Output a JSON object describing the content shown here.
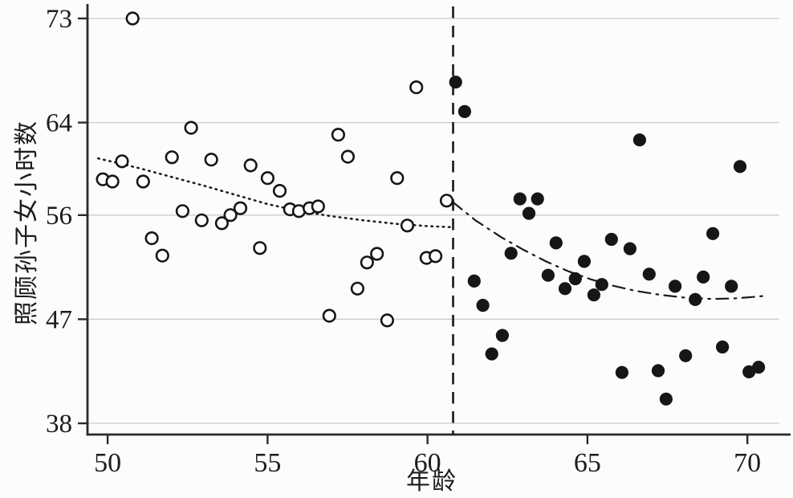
{
  "chart_data": {
    "type": "scatter",
    "title": "",
    "xlabel": "年龄",
    "ylabel": "照顾孙子女小时数",
    "x_ticks": [
      50,
      55,
      60,
      65,
      70
    ],
    "y_ticks": [
      73,
      64,
      56,
      47,
      38
    ],
    "xlim": [
      49.37,
      71.1
    ],
    "ylim": [
      37.03,
      74.04
    ],
    "grid": "horizontal-only",
    "legend": "none",
    "cutoff_line_x": 60.8,
    "colors": {
      "points": "#161616",
      "axis": "#2a2a2a",
      "grid": "#cccccc",
      "background": "#fcfcfb"
    },
    "series": [
      {
        "name": "pre-cutoff (open circles)",
        "marker": "open-circle",
        "points": [
          [
            50.78,
            73.0
          ],
          [
            49.85,
            59.1
          ],
          [
            50.15,
            58.9
          ],
          [
            50.45,
            60.65
          ],
          [
            51.11,
            58.9
          ],
          [
            51.38,
            54.0
          ],
          [
            51.71,
            52.5
          ],
          [
            52.01,
            61.0
          ],
          [
            52.34,
            56.35
          ],
          [
            52.61,
            63.55
          ],
          [
            52.94,
            55.55
          ],
          [
            53.24,
            60.8
          ],
          [
            53.57,
            55.3
          ],
          [
            53.84,
            56.0
          ],
          [
            54.15,
            56.6
          ],
          [
            54.47,
            60.3
          ],
          [
            54.76,
            53.15
          ],
          [
            55.0,
            59.2
          ],
          [
            55.38,
            58.1
          ],
          [
            55.7,
            56.5
          ],
          [
            55.98,
            56.35
          ],
          [
            56.31,
            56.6
          ],
          [
            56.58,
            56.75
          ],
          [
            56.93,
            47.3
          ],
          [
            57.21,
            62.95
          ],
          [
            57.51,
            61.05
          ],
          [
            57.81,
            49.65
          ],
          [
            58.11,
            51.9
          ],
          [
            58.42,
            52.65
          ],
          [
            58.74,
            46.9
          ],
          [
            59.05,
            59.2
          ],
          [
            59.37,
            55.1
          ],
          [
            59.65,
            67.05
          ],
          [
            59.97,
            52.3
          ],
          [
            60.25,
            52.45
          ],
          [
            60.6,
            57.25
          ]
        ]
      },
      {
        "name": "post-cutoff (filled circles)",
        "marker": "filled-circle",
        "points": [
          [
            60.88,
            67.5
          ],
          [
            61.16,
            64.95
          ],
          [
            61.46,
            50.3
          ],
          [
            61.73,
            48.2
          ],
          [
            62.01,
            44.0
          ],
          [
            62.34,
            45.6
          ],
          [
            62.61,
            52.7
          ],
          [
            62.89,
            57.4
          ],
          [
            63.17,
            56.15
          ],
          [
            63.44,
            57.4
          ],
          [
            63.77,
            50.8
          ],
          [
            64.02,
            53.6
          ],
          [
            64.3,
            49.65
          ],
          [
            64.62,
            50.5
          ],
          [
            64.9,
            52.0
          ],
          [
            65.2,
            49.1
          ],
          [
            65.45,
            50.0
          ],
          [
            65.75,
            53.9
          ],
          [
            66.08,
            42.4
          ],
          [
            66.33,
            53.1
          ],
          [
            66.63,
            62.5
          ],
          [
            66.93,
            50.9
          ],
          [
            67.21,
            42.55
          ],
          [
            67.46,
            40.1
          ],
          [
            67.74,
            49.85
          ],
          [
            68.07,
            43.85
          ],
          [
            68.37,
            48.7
          ],
          [
            68.62,
            50.65
          ],
          [
            68.92,
            54.4
          ],
          [
            69.22,
            44.6
          ],
          [
            69.5,
            49.85
          ],
          [
            69.77,
            60.2
          ],
          [
            70.05,
            42.45
          ],
          [
            70.35,
            42.85
          ]
        ]
      }
    ],
    "fit_lines": [
      {
        "name": "pre-cutoff fit",
        "style": "dotted",
        "points": [
          [
            49.7,
            60.9
          ],
          [
            51.0,
            60.05
          ],
          [
            52.0,
            59.3
          ],
          [
            53.0,
            58.55
          ],
          [
            54.0,
            57.75
          ],
          [
            55.0,
            56.95
          ],
          [
            56.0,
            56.35
          ],
          [
            57.0,
            55.9
          ],
          [
            58.0,
            55.55
          ],
          [
            59.0,
            55.25
          ],
          [
            60.0,
            55.05
          ],
          [
            60.78,
            54.95
          ]
        ]
      },
      {
        "name": "post-cutoff fit",
        "style": "dash-dot",
        "points": [
          [
            60.78,
            57.15
          ],
          [
            61.5,
            55.55
          ],
          [
            62.3,
            54.1
          ],
          [
            63.0,
            53.0
          ],
          [
            63.7,
            52.0
          ],
          [
            64.4,
            51.15
          ],
          [
            65.1,
            50.45
          ],
          [
            65.8,
            49.9
          ],
          [
            66.5,
            49.45
          ],
          [
            67.3,
            49.1
          ],
          [
            68.1,
            48.85
          ],
          [
            68.9,
            48.75
          ],
          [
            69.6,
            48.8
          ],
          [
            70.3,
            48.95
          ],
          [
            70.65,
            49.05
          ]
        ]
      }
    ]
  }
}
